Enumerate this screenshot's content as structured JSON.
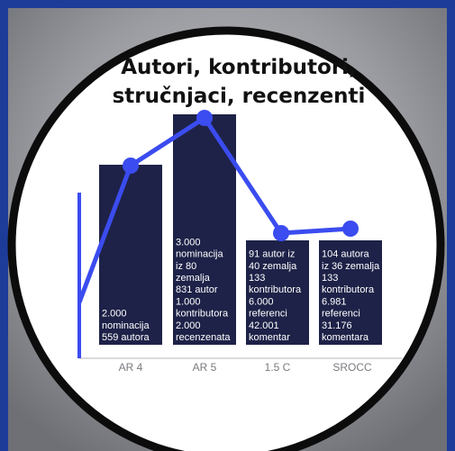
{
  "title": [
    "Autori, kontributori,",
    "stručnjaci, recenzenti"
  ],
  "columns": [
    {
      "label": "AR 4",
      "text": [
        "2.000",
        "nominacija",
        "559 autora"
      ]
    },
    {
      "label": "AR 5",
      "text": [
        "3.000",
        "nominacija",
        "iz 80",
        "zemalja",
        "831 autor",
        "1.000",
        "kontributora",
        "2.000",
        "recenzenata"
      ]
    },
    {
      "label": "1.5 C",
      "text": [
        "91 autor iz",
        "40 zemalja",
        "133",
        "kontributora",
        "6.000",
        "referenci",
        "42.001",
        "komentar"
      ]
    },
    {
      "label": "SROCC",
      "text": [
        "104 autora",
        "iz 36 zemalja",
        "133",
        "kontributora",
        "6.981",
        "referenci",
        "31.176",
        "komentara"
      ]
    }
  ]
}
